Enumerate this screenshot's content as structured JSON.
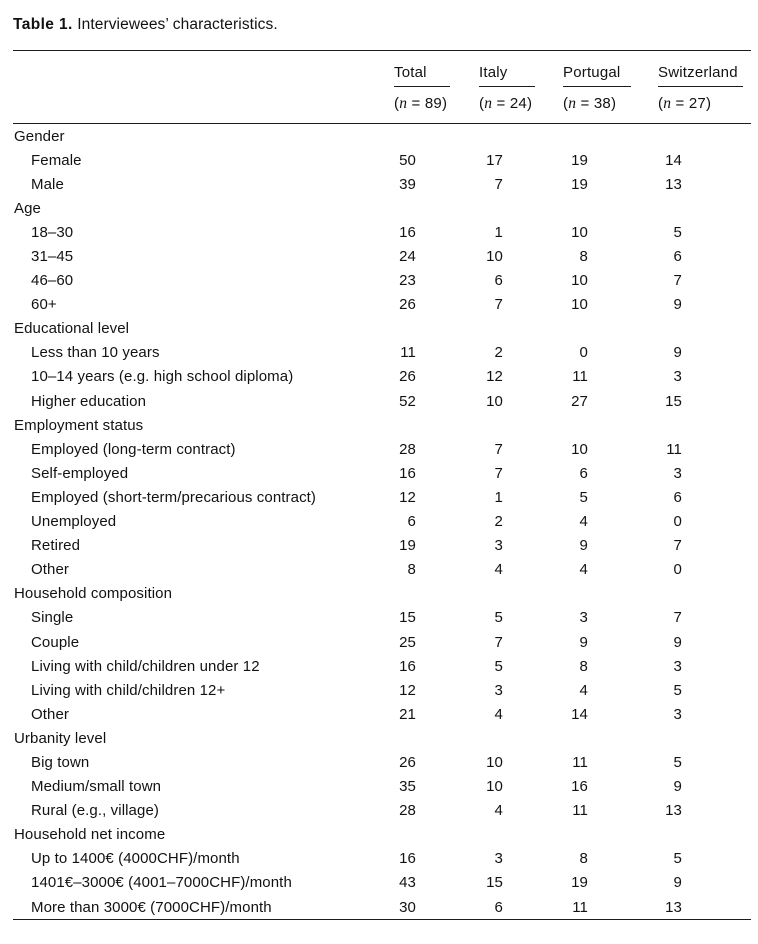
{
  "caption": {
    "label": "Table 1.",
    "text": " Interviewees’ characteristics."
  },
  "table": {
    "n_open": "(",
    "n_symbol": "n",
    "n_eq": " = ",
    "n_close": ")",
    "columns": [
      {
        "name": "Total",
        "n": "89"
      },
      {
        "name": "Italy",
        "n": "24"
      },
      {
        "name": "Portugal",
        "n": "38"
      },
      {
        "name": "Switzerland",
        "n": "27"
      }
    ],
    "rows": [
      {
        "label": "Gender",
        "group": true
      },
      {
        "label": "Female",
        "values": [
          "50",
          "17",
          "19",
          "14"
        ]
      },
      {
        "label": "Male",
        "values": [
          "39",
          "7",
          "19",
          "13"
        ]
      },
      {
        "label": "Age",
        "group": true
      },
      {
        "label": "18–30",
        "values": [
          "16",
          "1",
          "10",
          "5"
        ]
      },
      {
        "label": "31–45",
        "values": [
          "24",
          "10",
          "8",
          "6"
        ]
      },
      {
        "label": "46–60",
        "values": [
          "23",
          "6",
          "10",
          "7"
        ]
      },
      {
        "label": "60+",
        "values": [
          "26",
          "7",
          "10",
          "9"
        ]
      },
      {
        "label": "Educational level",
        "group": true
      },
      {
        "label": "Less than 10 years",
        "values": [
          "11",
          "2",
          "0",
          "9"
        ]
      },
      {
        "label": "10–14 years (e.g. high school diploma)",
        "values": [
          "26",
          "12",
          "11",
          "3"
        ]
      },
      {
        "label": "Higher education",
        "values": [
          "52",
          "10",
          "27",
          "15"
        ]
      },
      {
        "label": "Employment status",
        "group": true
      },
      {
        "label": "Employed (long-term contract)",
        "values": [
          "28",
          "7",
          "10",
          "11"
        ]
      },
      {
        "label": "Self-employed",
        "values": [
          "16",
          "7",
          "6",
          "3"
        ]
      },
      {
        "label": "Employed (short-term/precarious contract)",
        "values": [
          "12",
          "1",
          "5",
          "6"
        ]
      },
      {
        "label": "Unemployed",
        "values": [
          "6",
          "2",
          "4",
          "0"
        ]
      },
      {
        "label": "Retired",
        "values": [
          "19",
          "3",
          "9",
          "7"
        ]
      },
      {
        "label": "Other",
        "values": [
          "8",
          "4",
          "4",
          "0"
        ]
      },
      {
        "label": "Household composition",
        "group": true
      },
      {
        "label": "Single",
        "values": [
          "15",
          "5",
          "3",
          "7"
        ]
      },
      {
        "label": "Couple",
        "values": [
          "25",
          "7",
          "9",
          "9"
        ]
      },
      {
        "label": "Living with child/children under 12",
        "values": [
          "16",
          "5",
          "8",
          "3"
        ]
      },
      {
        "label": "Living with child/children 12+",
        "values": [
          "12",
          "3",
          "4",
          "5"
        ]
      },
      {
        "label": "Other",
        "values": [
          "21",
          "4",
          "14",
          "3"
        ]
      },
      {
        "label": "Urbanity level",
        "group": true
      },
      {
        "label": "Big town",
        "values": [
          "26",
          "10",
          "11",
          "5"
        ]
      },
      {
        "label": "Medium/small town",
        "values": [
          "35",
          "10",
          "16",
          "9"
        ]
      },
      {
        "label": "Rural (e.g., village)",
        "values": [
          "28",
          "4",
          "11",
          "13"
        ]
      },
      {
        "label": "Household net income",
        "group": true
      },
      {
        "label": "Up to 1400€ (4000CHF)/month",
        "values": [
          "16",
          "3",
          "8",
          "5"
        ]
      },
      {
        "label": "1401€–3000€ (4001–7000CHF)/month",
        "values": [
          "43",
          "15",
          "19",
          "9"
        ]
      },
      {
        "label": "More than 3000€ (7000CHF)/month",
        "values": [
          "30",
          "6",
          "11",
          "13"
        ]
      }
    ]
  }
}
